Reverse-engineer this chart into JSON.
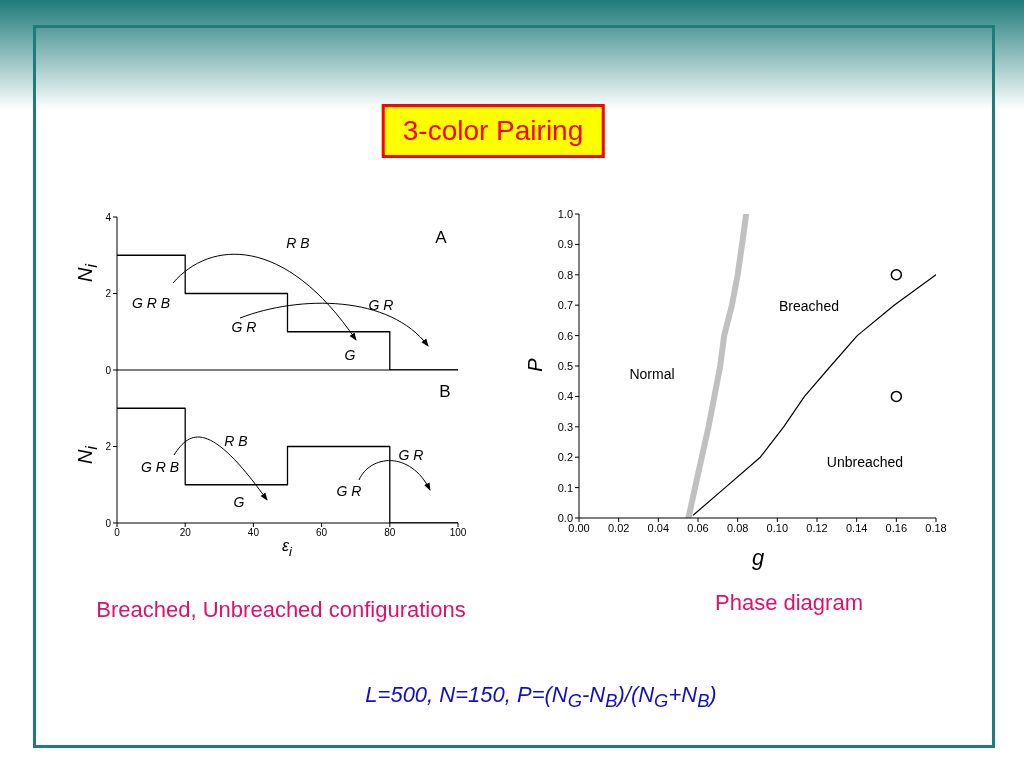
{
  "chart_data": [
    {
      "type": "step",
      "title": "3-color Pairing",
      "x": [
        0,
        20,
        50,
        80,
        100
      ],
      "values": [
        3,
        2,
        1,
        0,
        0
      ],
      "color": "#000000",
      "xlim": [
        0,
        100
      ],
      "xticks": [
        0,
        20,
        40,
        60,
        80,
        100
      ],
      "ylim": [
        0,
        4
      ],
      "yticks": [
        0,
        2,
        4
      ],
      "ylabel": "N$_{i}$",
      "tick_labels": "y",
      "annotations": [
        "A",
        "G R B",
        "R B",
        "G R",
        "G R",
        "G"
      ]
    },
    {
      "type": "step",
      "x": [
        0,
        20,
        50,
        80,
        100
      ],
      "values": [
        3,
        1,
        2,
        0,
        0
      ],
      "color": "#000000",
      "xlim": [
        0,
        100
      ],
      "xticks": [
        0,
        20,
        40,
        60,
        80,
        100
      ],
      "ylim": [
        0,
        4
      ],
      "yticks": [
        0,
        2
      ],
      "xlabel": "ε$_{i}$",
      "ylabel": "N$_{i}$",
      "annotations": [
        "B",
        "G R B",
        "R B",
        "G",
        "G R",
        "G R",
        "Breached, Unbreached configurations"
      ]
    },
    {
      "type": "line",
      "xlabel": "g",
      "ylabel": "P",
      "xlim": [
        0,
        0.18
      ],
      "ylim": [
        0,
        1
      ],
      "xticks": [
        {
          "value": 0,
          "label": "0.00"
        },
        {
          "value": 0.02,
          "label": "0.02"
        },
        {
          "value": 0.04,
          "label": "0.04"
        },
        {
          "value": 0.06,
          "label": "0.06"
        },
        {
          "value": 0.08,
          "label": "0.08"
        },
        {
          "value": 0.1,
          "label": "0.10"
        },
        {
          "value": 0.12,
          "label": "0.12"
        },
        {
          "value": 0.14,
          "label": "0.14"
        },
        {
          "value": 0.16,
          "label": "0.16"
        },
        {
          "value": 0.18,
          "label": "0.18"
        }
      ],
      "yticks": [
        {
          "value": 0,
          "label": "0.0"
        },
        {
          "value": 0.1,
          "label": "0.1"
        },
        {
          "value": 0.2,
          "label": "0.2"
        },
        {
          "value": 0.3,
          "label": "0.3"
        },
        {
          "value": 0.4,
          "label": "0.4"
        },
        {
          "value": 0.5,
          "label": "0.5"
        },
        {
          "value": 0.6,
          "label": "0.6"
        },
        {
          "value": 0.7,
          "label": "0.7"
        },
        {
          "value": 0.8,
          "label": "0.8"
        },
        {
          "value": 0.9,
          "label": "0.9"
        },
        {
          "value": 1,
          "label": "1.0"
        }
      ],
      "series": [
        {
          "color": "#c0c0c0",
          "x": [
            0.0552,
            0.0585,
            0.0653,
            0.0712,
            0.0732,
            0.0771,
            0.08,
            0.0822,
            0.0843
          ],
          "values": [
            0,
            0.1,
            0.3,
            0.5,
            0.6,
            0.7,
            0.8,
            0.9,
            1.0
          ]
        },
        {
          "color": "#000000",
          "x": [
            0.0577,
            0.0737,
            0.0914,
            0.1032,
            0.1137,
            0.1269,
            0.1403,
            0.1589,
            0.18
          ],
          "values": [
            0.01,
            0.1,
            0.2,
            0.3,
            0.4,
            0.5,
            0.6,
            0.7,
            0.8
          ]
        },
        {
          "type": "scatter",
          "color": "#000000",
          "marker": "circle",
          "x": [
            0.16,
            0.16
          ],
          "values": [
            0.8,
            0.4
          ]
        }
      ],
      "annotations": [
        "Normal",
        "Breached",
        "Unbreached",
        "Phase diagram",
        "L=500, N=150, P=(N$_{G}$-N$_{B}$)/(N$_{G}$+N$_{B}$)"
      ]
    }
  ]
}
